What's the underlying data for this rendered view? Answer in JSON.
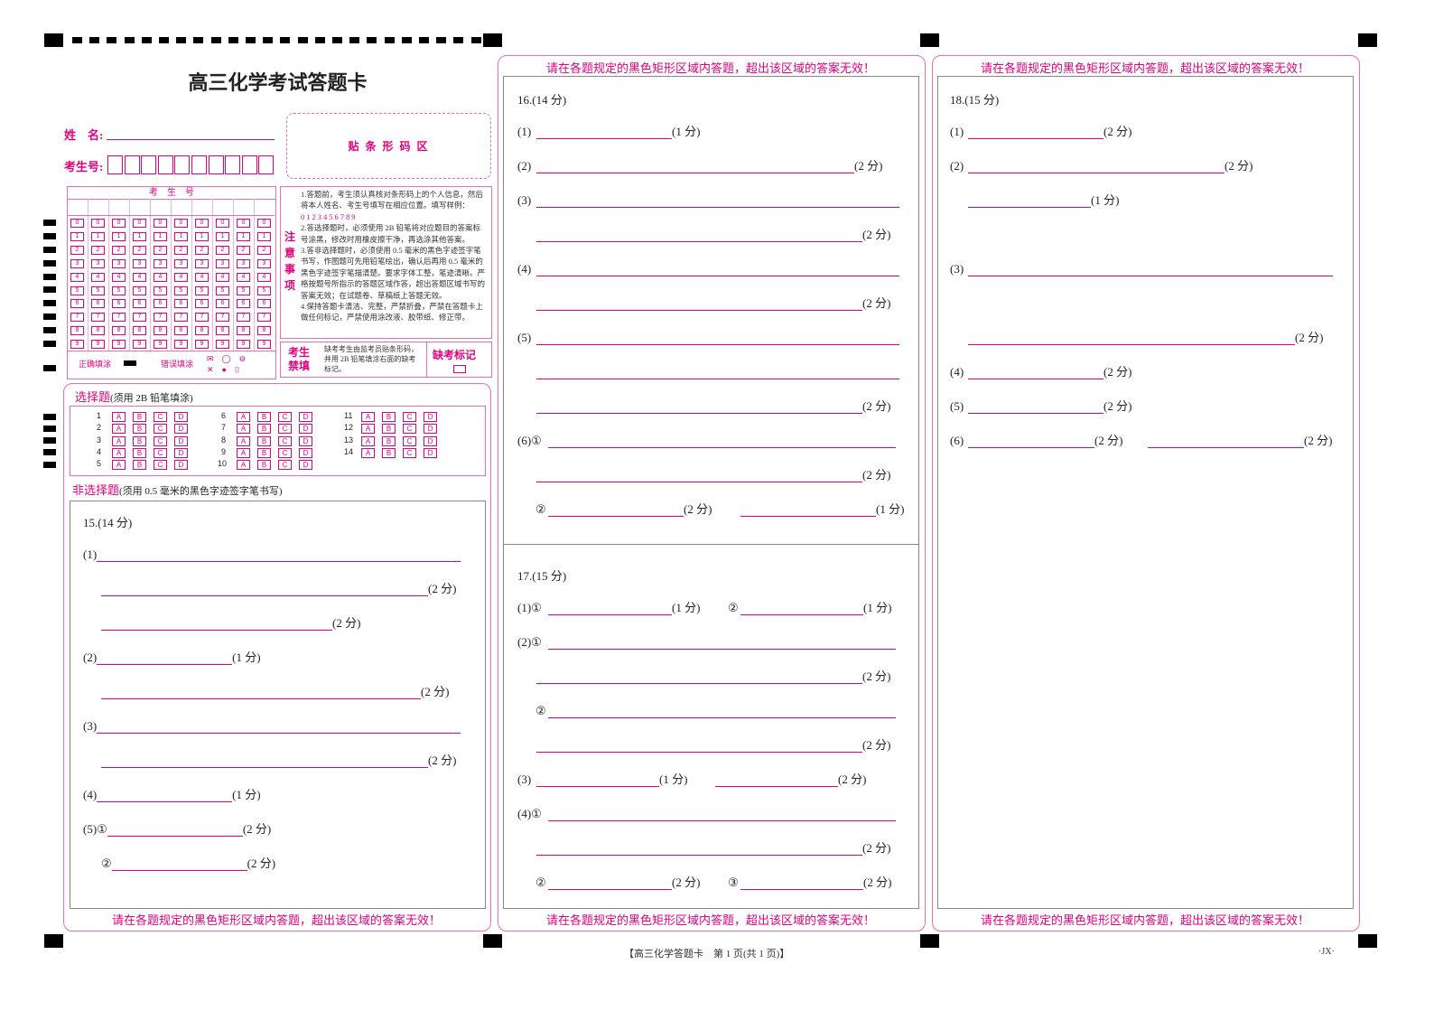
{
  "title": "高三化学考试答题卡",
  "name_label": "姓　名:",
  "id_label": "考生号:",
  "barcode_label": "贴 条 形 码 区",
  "grid_header": "考　生　号",
  "digits": [
    "0",
    "1",
    "2",
    "3",
    "4",
    "5",
    "6",
    "7",
    "8",
    "9"
  ],
  "correct_fill": "正确填涂",
  "wrong_fill": "错误填涂",
  "notes_title": "注意事项",
  "notes": [
    "1.答题前，考生须认真核对条形码上的个人信息，然后将本人姓名、考生号填写在相应位置。填写样例：",
    "0123456789",
    "2.答选择题时，必须使用 2B 铅笔将对应题目的答案标号涂黑，修改时用橡皮擦干净，再选涂其他答案。",
    "3.答非选择题时，必须使用 0.5 毫米的黑色字迹签字笔书写，作图题可先用铅笔绘出，确认后再用 0.5 毫米的黑色字迹签字笔描清楚。要求字体工整，笔迹清晰。严格按题号所指示的答题区域作答，超出答题区域书写的答案无效；在试题卷、草稿纸上答题无效。",
    "4.保持答题卡清洁、完整，严禁折叠，严禁在答题卡上做任何标记，严禁使用涂改液、胶带纸、修正带。"
  ],
  "proctor_label": "考生禁填",
  "proctor_text": "缺考考生由监考员贴条形码，并用 2B 铅笔填涂右面的缺考标记。",
  "absent_label": "缺考标记",
  "choice_title": "选择题",
  "choice_note": "(须用 2B 铅笔填涂)",
  "choice_options": [
    "A",
    "B",
    "C",
    "D"
  ],
  "choice_count": 14,
  "nonchoice_title": "非选择题",
  "nonchoice_note": "(须用 0.5 毫米的黑色字迹签字笔书写)",
  "warning": "请在各题规定的黑色矩形区域内答题，超出该区域的答案无效！",
  "q15": {
    "title": "15.(14 分)",
    "rows": [
      [
        "(1)",
        ""
      ],
      [
        "",
        "(2 分)"
      ],
      [
        "",
        "(2 分)"
      ],
      [
        "(2)",
        "(1 分)"
      ],
      [
        "",
        "(2 分)"
      ],
      [
        "(3)",
        ""
      ],
      [
        "",
        "(2 分)"
      ],
      [
        "(4)",
        "(1 分)"
      ],
      [
        "(5)①",
        "(2 分)"
      ],
      [
        "②",
        "(2 分)"
      ]
    ]
  },
  "q16": {
    "title": "16.(14 分)",
    "rows": [
      [
        "(1)",
        "(1 分)"
      ],
      [
        "(2)",
        "(2 分)"
      ],
      [
        "(3)",
        ""
      ],
      [
        "",
        "(2 分)"
      ],
      [
        "(4)",
        ""
      ],
      [
        "",
        "(2 分)"
      ],
      [
        "(5)",
        ""
      ],
      [
        "",
        ""
      ],
      [
        "",
        "(2 分)"
      ],
      [
        "(6)①",
        ""
      ],
      [
        "",
        "(2 分)"
      ],
      [
        "②",
        "(2 分)",
        "(1 分)"
      ]
    ]
  },
  "q17": {
    "title": "17.(15 分)",
    "rows": [
      [
        "(1)①",
        "(1 分)",
        "②",
        "(1 分)"
      ],
      [
        "(2)①",
        ""
      ],
      [
        "",
        "(2 分)"
      ],
      [
        "②",
        ""
      ],
      [
        "",
        "(2 分)"
      ],
      [
        "(3)",
        "(1 分)",
        "(2 分)"
      ],
      [
        "(4)①",
        ""
      ],
      [
        "",
        "(2 分)"
      ],
      [
        "②",
        "(2 分)",
        "③",
        "(2 分)"
      ]
    ]
  },
  "q18": {
    "title": "18.(15 分)",
    "rows": [
      [
        "(1)",
        "(2 分)"
      ],
      [
        "(2)",
        "(2 分)"
      ],
      [
        "",
        "(1 分)"
      ],
      [
        "(3)",
        ""
      ],
      [
        "",
        "(2 分)"
      ],
      [
        "(4)",
        "(2 分)"
      ],
      [
        "(5)",
        "(2 分)"
      ],
      [
        "(6)",
        "(2 分)",
        "(2 分)"
      ]
    ]
  },
  "footer": "【高三化学答题卡　第 1 页(共 1 页)】",
  "footer_code": "·JX·",
  "colors": {
    "accent": "#e4007f",
    "frame": "#ec6fb0"
  }
}
